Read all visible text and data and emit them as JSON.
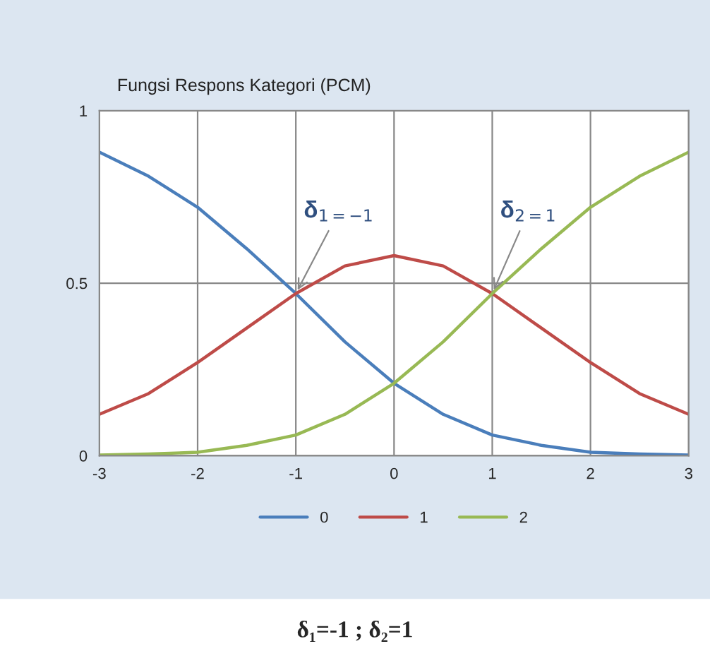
{
  "chart_data": {
    "type": "line",
    "title": "Fungsi Respons Kategori (PCM)",
    "x": [
      -3,
      -2.5,
      -2,
      -1.5,
      -1,
      -0.5,
      0,
      0.5,
      1,
      1.5,
      2,
      2.5,
      3
    ],
    "series": [
      {
        "name": "0",
        "color": "#4a7ebb",
        "values": [
          0.88,
          0.81,
          0.72,
          0.6,
          0.47,
          0.33,
          0.21,
          0.12,
          0.06,
          0.03,
          0.01,
          0.005,
          0.002
        ]
      },
      {
        "name": "1",
        "color": "#be4b48",
        "values": [
          0.12,
          0.18,
          0.27,
          0.37,
          0.47,
          0.55,
          0.58,
          0.55,
          0.47,
          0.37,
          0.27,
          0.18,
          0.12
        ]
      },
      {
        "name": "2",
        "color": "#98b954",
        "values": [
          0.002,
          0.005,
          0.01,
          0.03,
          0.06,
          0.12,
          0.21,
          0.33,
          0.47,
          0.6,
          0.72,
          0.81,
          0.88
        ]
      }
    ],
    "xlim": [
      -3,
      3
    ],
    "xticks": [
      -3,
      -2,
      -1,
      0,
      1,
      2,
      3
    ],
    "ylim": [
      0,
      1
    ],
    "yticks": [
      0,
      0.5,
      1
    ],
    "grid": true,
    "legend": "bottom",
    "marker": "none",
    "line_style": "solid",
    "annotations": [
      {
        "text": "δ$_{1=−1}$",
        "x": -1,
        "y": 0.47
      },
      {
        "text": "δ$_{2=1}$",
        "x": 1,
        "y": 0.47
      },
      "δ₁=-1 ; δ₂=1"
    ]
  }
}
